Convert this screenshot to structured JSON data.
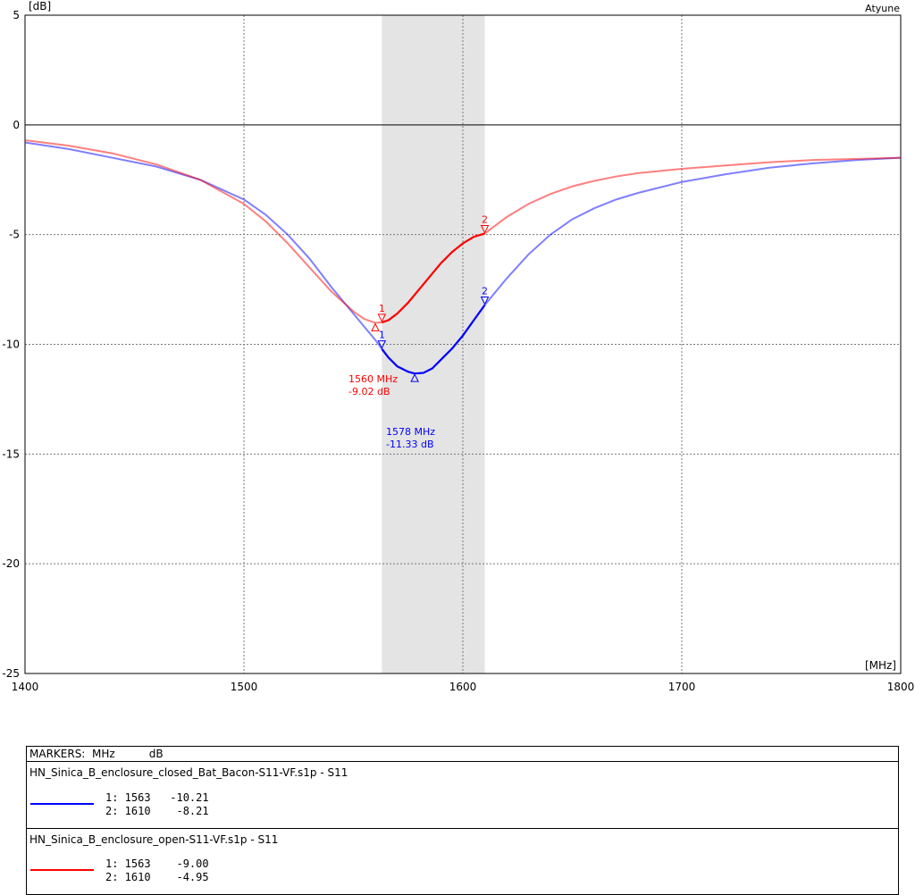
{
  "chart_data": {
    "type": "line",
    "ylabel_unit": "[dB]",
    "xlabel_unit": "[MHz]",
    "watermark": "Atyune",
    "xlim": [
      1400,
      1800
    ],
    "ylim": [
      -25,
      5
    ],
    "x_ticks": [
      "1400",
      "1500",
      "1600",
      "1700",
      "1800"
    ],
    "y_ticks": [
      "5",
      "0",
      "-5",
      "-10",
      "-15",
      "-20",
      "-25"
    ],
    "grid": true,
    "highlight_band": [
      1563,
      1610
    ],
    "series": [
      {
        "color": "#0000ff",
        "x": [
          1400,
          1420,
          1440,
          1460,
          1480,
          1500,
          1510,
          1520,
          1530,
          1540,
          1550,
          1555,
          1560,
          1563,
          1566,
          1570,
          1575,
          1578,
          1582,
          1586,
          1590,
          1595,
          1600,
          1605,
          1610,
          1620,
          1630,
          1640,
          1650,
          1660,
          1670,
          1680,
          1700,
          1720,
          1740,
          1760,
          1780,
          1800
        ],
        "y": [
          -0.8,
          -1.1,
          -1.5,
          -1.9,
          -2.5,
          -3.4,
          -4.1,
          -5.0,
          -6.1,
          -7.4,
          -8.6,
          -9.2,
          -9.8,
          -10.21,
          -10.6,
          -11.0,
          -11.25,
          -11.33,
          -11.3,
          -11.1,
          -10.7,
          -10.2,
          -9.6,
          -8.9,
          -8.21,
          -7.0,
          -5.9,
          -5.0,
          -4.3,
          -3.8,
          -3.4,
          -3.1,
          -2.6,
          -2.25,
          -1.95,
          -1.75,
          -1.6,
          -1.5
        ]
      },
      {
        "color": "#ff0000",
        "x": [
          1400,
          1420,
          1440,
          1460,
          1480,
          1500,
          1510,
          1520,
          1530,
          1540,
          1550,
          1555,
          1560,
          1563,
          1566,
          1570,
          1575,
          1580,
          1585,
          1590,
          1595,
          1600,
          1605,
          1610,
          1620,
          1630,
          1640,
          1650,
          1660,
          1670,
          1680,
          1700,
          1720,
          1740,
          1760,
          1780,
          1800
        ],
        "y": [
          -0.7,
          -0.95,
          -1.3,
          -1.8,
          -2.5,
          -3.6,
          -4.4,
          -5.4,
          -6.5,
          -7.6,
          -8.5,
          -8.85,
          -9.02,
          -9.0,
          -8.9,
          -8.6,
          -8.1,
          -7.5,
          -6.9,
          -6.3,
          -5.8,
          -5.4,
          -5.1,
          -4.95,
          -4.2,
          -3.6,
          -3.15,
          -2.8,
          -2.55,
          -2.35,
          -2.2,
          -2.0,
          -1.85,
          -1.7,
          -1.6,
          -1.55,
          -1.5
        ]
      }
    ],
    "annotations": {
      "blue_min": {
        "freq": 1578,
        "db": -11.33,
        "text_freq": "1578 MHz",
        "text_db": "-11.33 dB"
      },
      "red_min": {
        "freq": 1560,
        "db": -9.02,
        "text_freq": "1560 MHz",
        "text_db": "-9.02 dB"
      },
      "blue_markers": [
        {
          "label": "1",
          "freq": 1563,
          "db": -10.21
        },
        {
          "label": "2",
          "freq": 1610,
          "db": -8.21
        }
      ],
      "red_markers": [
        {
          "label": "1",
          "freq": 1563,
          "db": -9.0
        },
        {
          "label": "2",
          "freq": 1610,
          "db": -4.95
        }
      ]
    }
  },
  "legend": {
    "header": "MARKERS:  MHz          dB",
    "entries": [
      {
        "file": "HN_Sinica_B_enclosure_closed_Bat_Bacon-S11-VF.s1p - S11",
        "color": "#0000ff",
        "rows": [
          "1: 1563   -10.21",
          "2: 1610    -8.21"
        ]
      },
      {
        "file": "HN_Sinica_B_enclosure_open-S11-VF.s1p - S11",
        "color": "#ff0000",
        "rows": [
          "1: 1563    -9.00",
          "2: 1610    -4.95"
        ]
      }
    ]
  }
}
